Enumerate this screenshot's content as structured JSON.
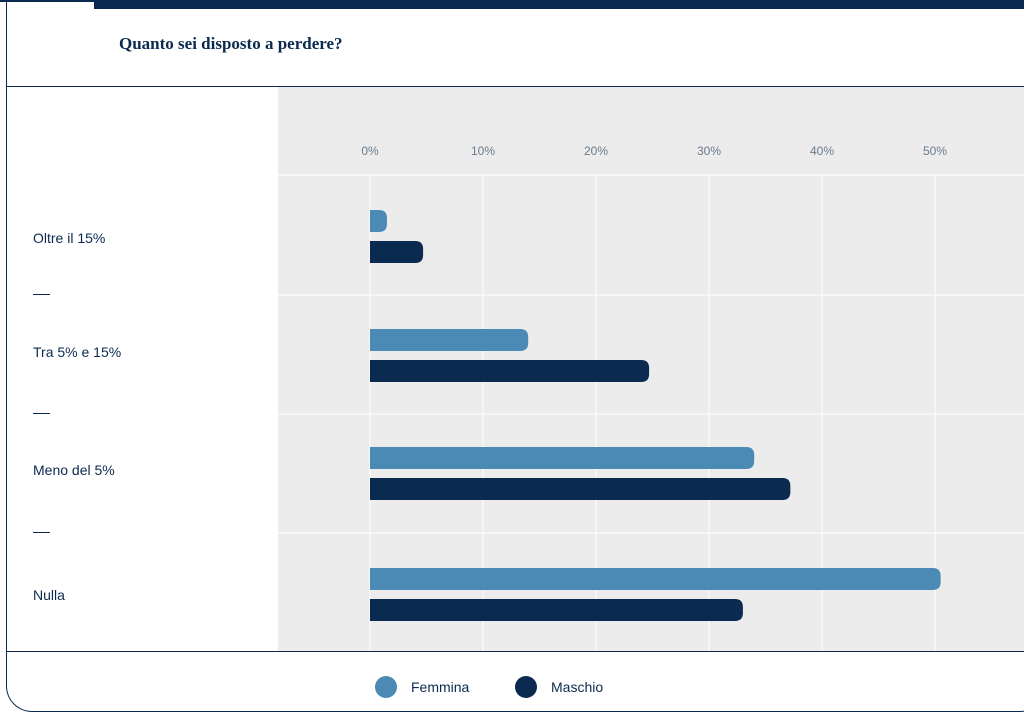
{
  "title": "Quanto sei disposto a perdere?",
  "colors": {
    "femmina": "#4a8ab4",
    "maschio": "#0b2a4f",
    "plot_bg": "#ececec",
    "grid": "#ffffff"
  },
  "chart_data": {
    "type": "bar",
    "orientation": "horizontal",
    "title": "Quanto sei disposto a perdere?",
    "categories": [
      "Oltre il 15%",
      "Tra 5% e 15%",
      "Meno del 5%",
      "Nulla"
    ],
    "series": [
      {
        "name": "Femmina",
        "values": [
          1.5,
          14,
          34,
          50.5
        ]
      },
      {
        "name": "Maschio",
        "values": [
          4.7,
          24.7,
          37.2,
          33
        ]
      }
    ],
    "x_ticks": [
      "0%",
      "10%",
      "20%",
      "30%",
      "40%",
      "50%"
    ],
    "xlim": [
      0,
      50
    ],
    "grid": true,
    "legend_position": "bottom"
  },
  "legend": [
    {
      "label": "Femmina"
    },
    {
      "label": "Maschio"
    }
  ],
  "separators": [
    "—",
    "—",
    "—"
  ]
}
